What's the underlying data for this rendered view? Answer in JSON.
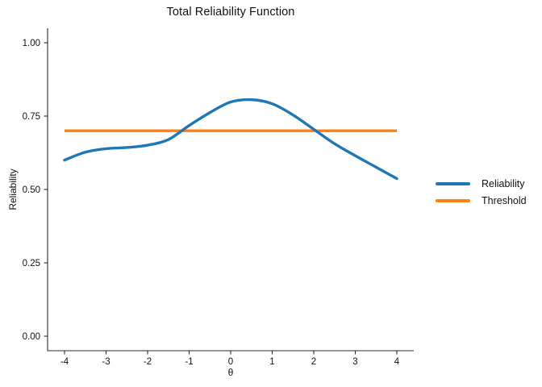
{
  "chart_data": {
    "type": "line",
    "title": "Total Reliability Function",
    "xlabel": "θ",
    "ylabel": "Reliability",
    "xlim": [
      -4.4,
      4.4
    ],
    "ylim": [
      -0.05,
      1.05
    ],
    "x_ticks": [
      -4,
      -3,
      -2,
      -1,
      0,
      1,
      2,
      3,
      4
    ],
    "x_tick_labels": [
      "-4",
      "-3",
      "-2",
      "-1",
      "0",
      "1",
      "2",
      "3",
      "4"
    ],
    "y_ticks": [
      0,
      0.25,
      0.5,
      0.75,
      1
    ],
    "y_tick_labels": [
      "0.00",
      "0.25",
      "0.50",
      "0.75",
      "1.00"
    ],
    "grid": false,
    "legend_position": "right-center",
    "series": [
      {
        "name": "Reliability",
        "color": "#1f77b4",
        "x": [
          -4.0,
          -3.5,
          -3.0,
          -2.5,
          -2.0,
          -1.5,
          -1.0,
          -0.5,
          0.0,
          0.5,
          1.0,
          1.5,
          2.0,
          2.5,
          3.0,
          3.5,
          4.0
        ],
        "values": [
          0.6,
          0.627,
          0.639,
          0.643,
          0.651,
          0.67,
          0.718,
          0.762,
          0.798,
          0.806,
          0.792,
          0.754,
          0.705,
          0.656,
          0.615,
          0.576,
          0.537
        ]
      },
      {
        "name": "Threshold",
        "color": "#ff7f0e",
        "x": [
          -4.0,
          4.0
        ],
        "values": [
          0.7,
          0.7
        ]
      }
    ],
    "axis_color": "#2b2b2b",
    "text_color": "#111111",
    "background": "#ffffff"
  }
}
